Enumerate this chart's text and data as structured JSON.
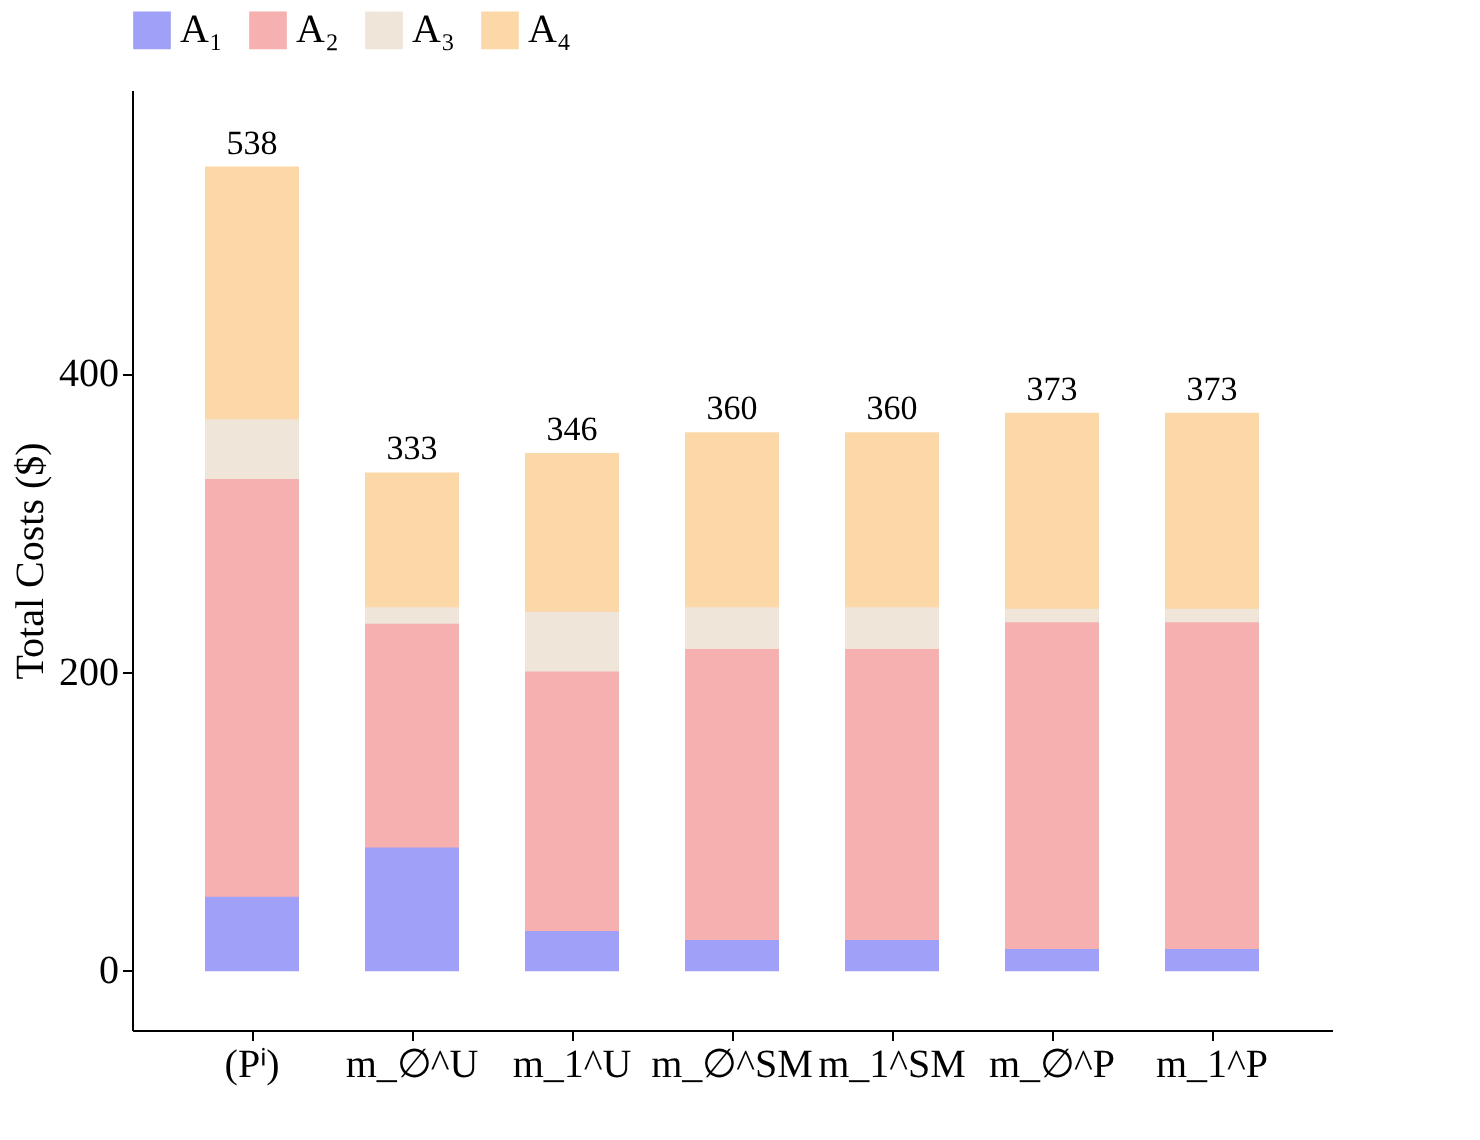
{
  "chart_data": {
    "type": "bar",
    "stacked": true,
    "ylabel": "Total Costs ($)",
    "categories": [
      "(Pⁱ)",
      "m_∅^U",
      "m_1^U",
      "m_∅^SM",
      "m_1^SM",
      "m_∅^P",
      "m_1^P"
    ],
    "series": [
      {
        "name": "A₁",
        "color": "#a0a0f8",
        "values": [
          50,
          83,
          27,
          21,
          21,
          15,
          15
        ]
      },
      {
        "name": "A₂",
        "color": "#f6b0b0",
        "values": [
          280,
          150,
          174,
          195,
          195,
          219,
          219
        ]
      },
      {
        "name": "A₃",
        "color": "#efe5d8",
        "values": [
          40,
          11,
          40,
          28,
          28,
          9,
          9
        ]
      },
      {
        "name": "A₄",
        "color": "#fcd8a8",
        "values": [
          168,
          89,
          105,
          116,
          116,
          130,
          130
        ]
      }
    ],
    "totals": [
      "538",
      "333",
      "346",
      "360",
      "360",
      "373",
      "373"
    ],
    "ylim": [
      -40,
      590
    ],
    "yticks": [
      0,
      200,
      400
    ],
    "grid": false,
    "legend": "top"
  }
}
